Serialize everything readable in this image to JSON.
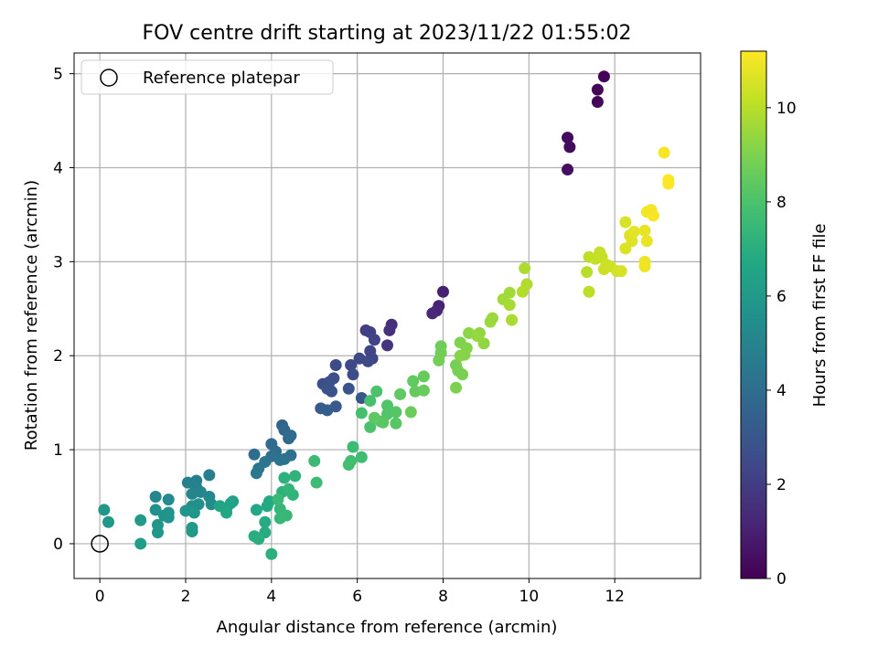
{
  "chart_data": {
    "type": "scatter",
    "title": "FOV centre drift starting at 2023/11/22 01:55:02",
    "xlabel": "Angular distance from reference (arcmin)",
    "ylabel": "Rotation from reference (arcmin)",
    "xlim": [
      -0.6,
      14.0
    ],
    "ylim": [
      -0.37,
      5.22
    ],
    "xticks": [
      0,
      2,
      4,
      6,
      8,
      10,
      12
    ],
    "yticks": [
      0,
      1,
      2,
      3,
      4,
      5
    ],
    "grid": true,
    "colormap": "viridis",
    "colorbar": {
      "label": "Hours from first FF file",
      "range": [
        0,
        11.2
      ],
      "ticks": [
        0,
        2,
        4,
        6,
        8,
        10
      ]
    },
    "legend": {
      "position": "upper-left",
      "entries": [
        "Reference platepar"
      ]
    },
    "reference_point": {
      "x": 0,
      "y": 0
    },
    "points": [
      [
        11.75,
        4.97,
        0.1
      ],
      [
        11.6,
        4.83,
        0.15
      ],
      [
        11.6,
        4.7,
        0.2
      ],
      [
        10.9,
        4.32,
        0.3
      ],
      [
        10.95,
        4.22,
        0.35
      ],
      [
        10.9,
        3.98,
        0.4
      ],
      [
        8.0,
        2.68,
        1.0
      ],
      [
        7.9,
        2.53,
        1.1
      ],
      [
        7.85,
        2.48,
        1.2
      ],
      [
        7.75,
        2.45,
        1.3
      ],
      [
        6.8,
        2.33,
        1.5
      ],
      [
        6.75,
        2.27,
        1.6
      ],
      [
        6.7,
        2.11,
        1.7
      ],
      [
        6.2,
        2.27,
        2.0
      ],
      [
        6.3,
        2.25,
        2.1
      ],
      [
        6.4,
        2.17,
        2.2
      ],
      [
        6.3,
        2.05,
        2.25
      ],
      [
        6.35,
        1.97,
        2.3
      ],
      [
        6.05,
        1.97,
        2.4
      ],
      [
        6.25,
        1.94,
        2.45
      ],
      [
        5.85,
        1.9,
        2.5
      ],
      [
        5.5,
        1.9,
        2.55
      ],
      [
        5.9,
        1.8,
        2.6
      ],
      [
        5.45,
        1.76,
        2.65
      ],
      [
        5.2,
        1.7,
        2.7
      ],
      [
        5.35,
        1.72,
        2.75
      ],
      [
        5.4,
        1.62,
        2.8
      ],
      [
        5.3,
        1.65,
        2.85
      ],
      [
        5.8,
        1.65,
        2.9
      ],
      [
        6.1,
        1.55,
        3.0
      ],
      [
        5.5,
        1.46,
        3.1
      ],
      [
        5.15,
        1.44,
        3.2
      ],
      [
        5.3,
        1.42,
        3.3
      ],
      [
        4.25,
        1.26,
        3.6
      ],
      [
        4.3,
        1.21,
        3.7
      ],
      [
        4.4,
        1.12,
        3.8
      ],
      [
        4.45,
        1.15,
        3.85
      ],
      [
        4.0,
        1.06,
        3.9
      ],
      [
        4.1,
        0.98,
        3.95
      ],
      [
        3.6,
        0.95,
        4.0
      ],
      [
        4.0,
        0.93,
        4.1
      ],
      [
        4.45,
        0.94,
        4.15
      ],
      [
        4.3,
        0.9,
        4.2
      ],
      [
        4.2,
        0.89,
        4.3
      ],
      [
        3.85,
        0.87,
        4.35
      ],
      [
        3.7,
        0.8,
        4.4
      ],
      [
        3.65,
        0.75,
        4.5
      ],
      [
        2.55,
        0.73,
        4.7
      ],
      [
        2.25,
        0.67,
        4.8
      ],
      [
        2.05,
        0.65,
        4.85
      ],
      [
        2.25,
        0.6,
        4.9
      ],
      [
        2.35,
        0.55,
        5.0
      ],
      [
        2.15,
        0.53,
        5.05
      ],
      [
        1.3,
        0.5,
        5.1
      ],
      [
        2.55,
        0.5,
        5.2
      ],
      [
        1.6,
        0.47,
        5.3
      ],
      [
        2.6,
        0.42,
        5.4
      ],
      [
        2.3,
        0.42,
        5.5
      ],
      [
        2.15,
        0.4,
        5.55
      ],
      [
        1.3,
        0.36,
        5.6
      ],
      [
        1.6,
        0.33,
        5.65
      ],
      [
        1.5,
        0.3,
        5.7
      ],
      [
        1.6,
        0.28,
        5.75
      ],
      [
        2.0,
        0.35,
        5.8
      ],
      [
        2.2,
        0.33,
        5.85
      ],
      [
        1.35,
        0.2,
        5.9
      ],
      [
        1.35,
        0.12,
        5.95
      ],
      [
        2.15,
        0.17,
        6.0
      ],
      [
        2.15,
        0.13,
        6.05
      ],
      [
        0.1,
        0.36,
        5.9
      ],
      [
        0.2,
        0.23,
        6.0
      ],
      [
        0.95,
        0.25,
        6.1
      ],
      [
        0.95,
        0.0,
        6.2
      ],
      [
        3.1,
        0.45,
        6.4
      ],
      [
        3.05,
        0.43,
        6.45
      ],
      [
        2.95,
        0.37,
        6.5
      ],
      [
        2.8,
        0.4,
        6.55
      ],
      [
        2.95,
        0.33,
        6.6
      ],
      [
        3.65,
        0.36,
        6.7
      ],
      [
        3.95,
        0.45,
        6.75
      ],
      [
        3.9,
        0.4,
        6.8
      ],
      [
        3.85,
        0.23,
        6.85
      ],
      [
        3.85,
        0.12,
        6.9
      ],
      [
        3.6,
        0.08,
        6.95
      ],
      [
        3.7,
        0.05,
        7.0
      ],
      [
        4.0,
        -0.11,
        7.05
      ],
      [
        4.3,
        0.7,
        7.1
      ],
      [
        4.25,
        0.55,
        7.15
      ],
      [
        4.55,
        0.72,
        7.2
      ],
      [
        4.5,
        0.52,
        7.25
      ],
      [
        4.4,
        0.58,
        7.3
      ],
      [
        4.2,
        0.37,
        7.35
      ],
      [
        4.35,
        0.3,
        7.4
      ],
      [
        4.2,
        0.27,
        7.45
      ],
      [
        4.15,
        0.47,
        7.5
      ],
      [
        5.0,
        0.88,
        7.55
      ],
      [
        5.05,
        0.65,
        7.6
      ],
      [
        5.9,
        1.03,
        7.65
      ],
      [
        6.1,
        0.92,
        7.7
      ],
      [
        5.85,
        0.88,
        7.75
      ],
      [
        5.8,
        0.84,
        7.8
      ],
      [
        6.1,
        1.39,
        7.85
      ],
      [
        6.3,
        1.52,
        7.9
      ],
      [
        6.3,
        1.24,
        7.95
      ],
      [
        6.45,
        1.62,
        8.0
      ],
      [
        6.55,
        1.3,
        8.05
      ],
      [
        6.7,
        1.47,
        8.1
      ],
      [
        6.7,
        1.38,
        8.15
      ],
      [
        6.9,
        1.4,
        8.2
      ],
      [
        6.9,
        1.28,
        8.25
      ],
      [
        6.6,
        1.29,
        8.3
      ],
      [
        6.4,
        1.34,
        8.35
      ],
      [
        7.0,
        1.59,
        8.4
      ],
      [
        7.3,
        1.73,
        8.45
      ],
      [
        7.35,
        1.62,
        8.5
      ],
      [
        7.55,
        1.78,
        8.55
      ],
      [
        7.55,
        1.63,
        8.6
      ],
      [
        7.25,
        1.4,
        8.65
      ],
      [
        7.95,
        2.1,
        8.7
      ],
      [
        7.95,
        2.03,
        8.75
      ],
      [
        7.9,
        1.95,
        8.8
      ],
      [
        8.3,
        1.9,
        8.85
      ],
      [
        8.35,
        1.84,
        8.9
      ],
      [
        8.45,
        1.8,
        8.95
      ],
      [
        8.3,
        1.66,
        9.0
      ],
      [
        8.4,
        2.14,
        9.05
      ],
      [
        8.55,
        2.08,
        9.1
      ],
      [
        8.5,
        2.01,
        9.15
      ],
      [
        8.4,
        2.0,
        9.2
      ],
      [
        8.6,
        2.24,
        9.25
      ],
      [
        8.85,
        2.24,
        9.3
      ],
      [
        8.95,
        2.13,
        9.35
      ],
      [
        8.8,
        2.21,
        9.4
      ],
      [
        9.1,
        2.36,
        9.5
      ],
      [
        9.15,
        2.4,
        9.55
      ],
      [
        9.4,
        2.6,
        9.6
      ],
      [
        9.55,
        2.67,
        9.65
      ],
      [
        9.55,
        2.54,
        9.7
      ],
      [
        9.6,
        2.38,
        9.75
      ],
      [
        9.9,
        2.93,
        9.8
      ],
      [
        9.95,
        2.76,
        9.85
      ],
      [
        9.85,
        2.68,
        9.9
      ],
      [
        11.35,
        2.89,
        10.0
      ],
      [
        11.4,
        2.68,
        10.05
      ],
      [
        11.4,
        3.05,
        10.1
      ],
      [
        11.55,
        3.03,
        10.15
      ],
      [
        11.65,
        3.1,
        10.2
      ],
      [
        11.7,
        3.05,
        10.25
      ],
      [
        11.8,
        2.97,
        10.3
      ],
      [
        11.75,
        2.92,
        10.35
      ],
      [
        11.9,
        2.95,
        10.4
      ],
      [
        12.05,
        2.9,
        10.45
      ],
      [
        12.15,
        2.9,
        10.5
      ],
      [
        12.25,
        3.42,
        10.55
      ],
      [
        12.25,
        3.14,
        10.6
      ],
      [
        12.35,
        3.28,
        10.65
      ],
      [
        12.4,
        3.22,
        10.7
      ],
      [
        12.45,
        3.32,
        10.75
      ],
      [
        12.7,
        3.33,
        10.8
      ],
      [
        12.75,
        3.22,
        10.85
      ],
      [
        12.7,
        3.0,
        10.9
      ],
      [
        12.7,
        2.95,
        10.95
      ],
      [
        12.75,
        3.53,
        11.0
      ],
      [
        12.85,
        3.55,
        11.05
      ],
      [
        12.9,
        3.49,
        11.1
      ],
      [
        13.15,
        4.16,
        11.1
      ],
      [
        13.25,
        3.87,
        11.15
      ],
      [
        13.25,
        3.83,
        11.2
      ]
    ]
  }
}
